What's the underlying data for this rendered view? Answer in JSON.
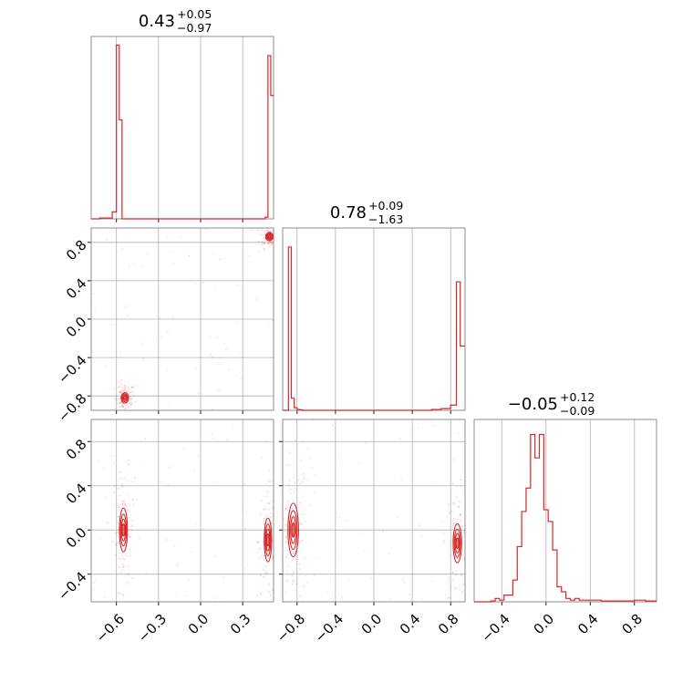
{
  "chart_data": {
    "type": "corner",
    "color": "#d62728",
    "grid": true,
    "parameters": [
      {
        "title": {
          "median": "0.43",
          "plus": "+0.05",
          "minus": "−0.97"
        },
        "range": [
          -0.78,
          0.52
        ],
        "ticks": [
          -0.6,
          -0.3,
          0.0,
          0.3
        ],
        "tick_labels": [
          "−0.6",
          "−0.3",
          "0.0",
          "0.3"
        ],
        "histogram": {
          "edges": [
            -0.78,
            -0.75,
            -0.72,
            -0.69,
            -0.66,
            -0.63,
            -0.6,
            -0.58,
            -0.56,
            -0.54,
            -0.52,
            -0.5,
            -0.4,
            -0.3,
            -0.2,
            -0.1,
            0.0,
            0.1,
            0.2,
            0.3,
            0.36,
            0.42,
            0.46,
            0.48,
            0.5,
            0.52
          ],
          "counts": [
            0.0,
            0.0,
            0.005,
            0.005,
            0.005,
            0.04,
            1.0,
            0.57,
            0.0,
            0.0,
            0.0,
            0.0,
            0.0,
            0.0,
            0.0,
            0.0,
            0.0,
            0.0,
            0.0,
            0.0,
            0.0,
            0.0,
            0.01,
            0.94,
            0.71
          ],
          "ymax": 1.05
        }
      },
      {
        "title": {
          "median": "0.78",
          "plus": "+0.09",
          "minus": "−1.63"
        },
        "range": [
          -0.95,
          0.95
        ],
        "ticks": [
          -0.8,
          -0.4,
          0.0,
          0.4,
          0.8
        ],
        "tick_labels": [
          "−0.8",
          "−0.4",
          "0.0",
          "0.4",
          "0.8"
        ],
        "histogram": {
          "edges": [
            -0.95,
            -0.89,
            -0.86,
            -0.83,
            -0.8,
            -0.77,
            -0.74,
            -0.6,
            -0.4,
            -0.2,
            0.0,
            0.2,
            0.4,
            0.6,
            0.7,
            0.8,
            0.86,
            0.9,
            0.95
          ],
          "counts": [
            0.0,
            0.94,
            0.07,
            0.015,
            0.005,
            0.003,
            0.0,
            0.0,
            0.0,
            0.0,
            0.0,
            0.0,
            0.0,
            0.005,
            0.01,
            0.03,
            0.74,
            0.37
          ],
          "ymax": 1.05
        }
      },
      {
        "title": {
          "median": "−0.05",
          "plus": "+0.12",
          "minus": "−0.09"
        },
        "range": [
          -0.65,
          1.0
        ],
        "ticks": [
          -0.4,
          0.0,
          0.4,
          0.8
        ],
        "tick_labels": [
          "−0.4",
          "0.0",
          "0.4",
          "0.8"
        ],
        "histogram": {
          "edges": [
            -0.65,
            -0.5,
            -0.46,
            -0.42,
            -0.38,
            -0.34,
            -0.3,
            -0.26,
            -0.22,
            -0.18,
            -0.14,
            -0.1,
            -0.06,
            -0.02,
            0.02,
            0.06,
            0.1,
            0.14,
            0.18,
            0.22,
            0.26,
            0.3,
            0.4,
            0.5,
            0.6,
            0.7,
            0.8,
            0.9,
            1.0
          ],
          "counts": [
            0.0,
            0.005,
            0.02,
            0.01,
            0.04,
            0.04,
            0.13,
            0.33,
            0.54,
            0.68,
            1.0,
            0.86,
            1.0,
            0.55,
            0.48,
            0.31,
            0.09,
            0.06,
            0.02,
            0.01,
            0.02,
            0.01,
            0.01,
            0.005,
            0.005,
            0.005,
            0.01,
            0.005
          ],
          "ymax": 1.09
        }
      }
    ],
    "pairs": [
      {
        "x_param": 0,
        "y_param": 1,
        "modes": [
          {
            "x": -0.54,
            "y": -0.82,
            "sx": 0.012,
            "sy": 0.025
          },
          {
            "x": 0.49,
            "y": 0.86,
            "sx": 0.012,
            "sy": 0.02
          }
        ]
      },
      {
        "x_param": 0,
        "y_param": 2,
        "modes": [
          {
            "x": -0.55,
            "y": 0.0,
            "sx": 0.013,
            "sy": 0.09
          },
          {
            "x": 0.48,
            "y": -0.09,
            "sx": 0.012,
            "sy": 0.09
          }
        ]
      },
      {
        "x_param": 1,
        "y_param": 2,
        "modes": [
          {
            "x": -0.84,
            "y": 0.0,
            "sx": 0.025,
            "sy": 0.11
          },
          {
            "x": 0.87,
            "y": -0.12,
            "sx": 0.02,
            "sy": 0.08
          }
        ]
      }
    ]
  }
}
